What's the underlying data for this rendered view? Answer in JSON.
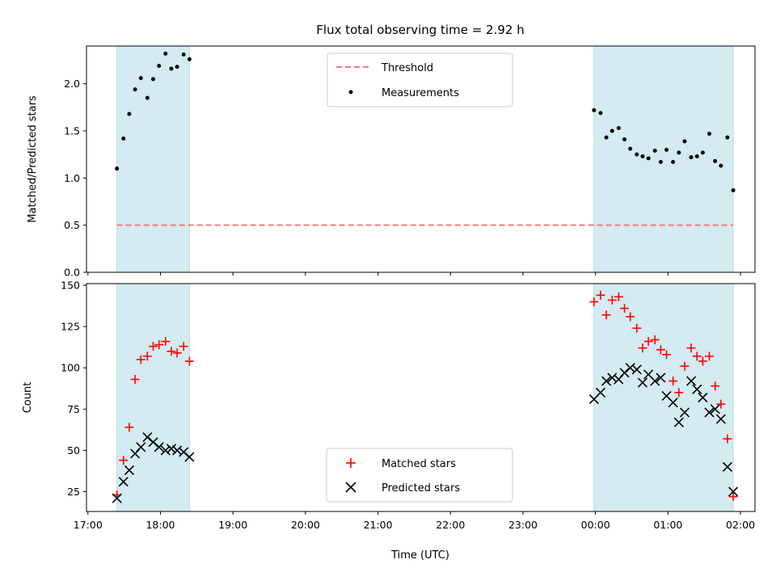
{
  "chart_data": {
    "title": "Flux total observing time = 2.92 h",
    "xlabel": "Time (UTC)",
    "x_tick_labels": [
      "17:00",
      "18:00",
      "19:00",
      "20:00",
      "21:00",
      "22:00",
      "23:00",
      "00:00",
      "01:00",
      "02:00"
    ],
    "x_ticks_hours": [
      17,
      18,
      19,
      20,
      21,
      22,
      23,
      24,
      25,
      26
    ],
    "xlim_hours": [
      16.98,
      26.2
    ],
    "shaded_intervals_hours": [
      [
        17.4,
        18.4
      ],
      [
        23.98,
        25.9
      ]
    ],
    "shade_color": "#d3ebf1",
    "top_panel": {
      "type": "scatter",
      "ylabel": "Matched/Predicted stars",
      "ylim": [
        0,
        2.4
      ],
      "y_ticks": [
        0.0,
        0.5,
        1.0,
        1.5,
        2.0
      ],
      "y_tick_labels": [
        "0.0",
        "0.5",
        "1.0",
        "1.5",
        "2.0"
      ],
      "threshold": {
        "name": "Threshold",
        "value": 0.5,
        "x_range_hours": [
          17.4,
          25.9
        ],
        "color": "#f47a7a"
      },
      "measurements": {
        "name": "Measurements",
        "color": "#000000",
        "points": [
          [
            17.4,
            1.1
          ],
          [
            17.49,
            1.42
          ],
          [
            17.57,
            1.68
          ],
          [
            17.65,
            1.94
          ],
          [
            17.73,
            2.06
          ],
          [
            17.82,
            1.85
          ],
          [
            17.9,
            2.05
          ],
          [
            17.98,
            2.19
          ],
          [
            18.07,
            2.32
          ],
          [
            18.15,
            2.16
          ],
          [
            18.23,
            2.18
          ],
          [
            18.32,
            2.31
          ],
          [
            18.4,
            2.26
          ],
          [
            23.98,
            1.72
          ],
          [
            24.07,
            1.69
          ],
          [
            24.15,
            1.43
          ],
          [
            24.23,
            1.5
          ],
          [
            24.32,
            1.53
          ],
          [
            24.4,
            1.41
          ],
          [
            24.48,
            1.31
          ],
          [
            24.57,
            1.25
          ],
          [
            24.65,
            1.23
          ],
          [
            24.73,
            1.21
          ],
          [
            24.82,
            1.29
          ],
          [
            24.9,
            1.17
          ],
          [
            24.98,
            1.3
          ],
          [
            25.07,
            1.17
          ],
          [
            25.15,
            1.27
          ],
          [
            25.23,
            1.39
          ],
          [
            25.32,
            1.22
          ],
          [
            25.4,
            1.23
          ],
          [
            25.48,
            1.27
          ],
          [
            25.57,
            1.47
          ],
          [
            25.65,
            1.18
          ],
          [
            25.73,
            1.13
          ],
          [
            25.82,
            1.43
          ],
          [
            25.9,
            0.87
          ]
        ]
      }
    },
    "bottom_panel": {
      "type": "scatter",
      "ylabel": "Count",
      "ylim": [
        13,
        151
      ],
      "y_ticks": [
        25,
        50,
        75,
        100,
        125,
        150
      ],
      "y_tick_labels": [
        "25",
        "50",
        "75",
        "100",
        "125",
        "150"
      ],
      "series": [
        {
          "name": "Matched stars",
          "marker": "plus",
          "color": "#ff0000",
          "points": [
            [
              17.4,
              23
            ],
            [
              17.49,
              44
            ],
            [
              17.57,
              64
            ],
            [
              17.65,
              93
            ],
            [
              17.73,
              105
            ],
            [
              17.82,
              107
            ],
            [
              17.9,
              113
            ],
            [
              17.98,
              114
            ],
            [
              18.07,
              116
            ],
            [
              18.15,
              110
            ],
            [
              18.23,
              109
            ],
            [
              18.32,
              113
            ],
            [
              18.4,
              104
            ],
            [
              23.98,
              140
            ],
            [
              24.07,
              144
            ],
            [
              24.15,
              132
            ],
            [
              24.23,
              141
            ],
            [
              24.32,
              143
            ],
            [
              24.4,
              136
            ],
            [
              24.48,
              131
            ],
            [
              24.57,
              124
            ],
            [
              24.65,
              112
            ],
            [
              24.73,
              116
            ],
            [
              24.82,
              117
            ],
            [
              24.9,
              111
            ],
            [
              24.98,
              108
            ],
            [
              25.07,
              92
            ],
            [
              25.15,
              85
            ],
            [
              25.23,
              101
            ],
            [
              25.32,
              112
            ],
            [
              25.4,
              107
            ],
            [
              25.48,
              104
            ],
            [
              25.57,
              107
            ],
            [
              25.65,
              89
            ],
            [
              25.73,
              78
            ],
            [
              25.82,
              57
            ],
            [
              25.9,
              22
            ]
          ]
        },
        {
          "name": "Predicted stars",
          "marker": "x",
          "color": "#000000",
          "points": [
            [
              17.4,
              21
            ],
            [
              17.49,
              31
            ],
            [
              17.57,
              38
            ],
            [
              17.65,
              48
            ],
            [
              17.73,
              52
            ],
            [
              17.82,
              58
            ],
            [
              17.9,
              55
            ],
            [
              17.98,
              52
            ],
            [
              18.07,
              50
            ],
            [
              18.15,
              51
            ],
            [
              18.23,
              50
            ],
            [
              18.32,
              49
            ],
            [
              18.4,
              46
            ],
            [
              23.98,
              81
            ],
            [
              24.07,
              85
            ],
            [
              24.15,
              92
            ],
            [
              24.23,
              94
            ],
            [
              24.32,
              93
            ],
            [
              24.4,
              97
            ],
            [
              24.48,
              100
            ],
            [
              24.57,
              99
            ],
            [
              24.65,
              91
            ],
            [
              24.73,
              96
            ],
            [
              24.82,
              92
            ],
            [
              24.9,
              94
            ],
            [
              24.98,
              83
            ],
            [
              25.07,
              79
            ],
            [
              25.15,
              67
            ],
            [
              25.23,
              73
            ],
            [
              25.32,
              92
            ],
            [
              25.4,
              87
            ],
            [
              25.48,
              82
            ],
            [
              25.57,
              73
            ],
            [
              25.65,
              75
            ],
            [
              25.73,
              69
            ],
            [
              25.82,
              40
            ],
            [
              25.9,
              25
            ]
          ]
        }
      ]
    }
  }
}
